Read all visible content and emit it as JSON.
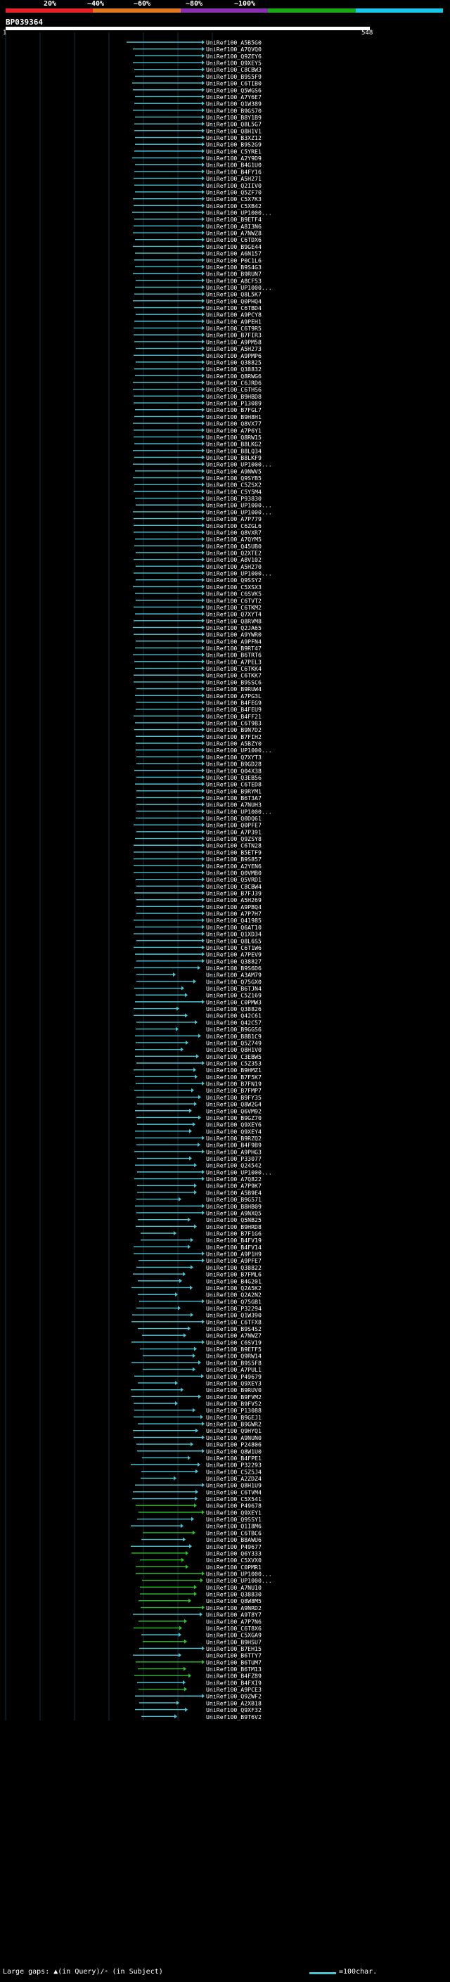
{
  "scale": {
    "labels": [
      "20%",
      "~40%",
      "~60%",
      "~80%",
      "~100%"
    ],
    "colors": [
      "#e8202a",
      "#e07820",
      "#8a30b0",
      "#18a818",
      "#18c8e8"
    ]
  },
  "query": {
    "name": "BP039364",
    "start_label": "1",
    "end_label": "548"
  },
  "colors": {
    "hit": "#48c6d4",
    "hit_alt": "#2ec02e",
    "grid": "#1c2c3c"
  },
  "hits": [
    "UniRef100_A5B5G0",
    "UniRef100_A7QVQ0",
    "UniRef100_Q9ZEY6",
    "UniRef100_Q9XEY5",
    "UniRef100_C8CBW3",
    "UniRef100_B9S5F9",
    "UniRef100_C6TIB0",
    "UniRef100_Q5WGS6",
    "UniRef100_A7Y6E7",
    "UniRef100_Q1W389",
    "UniRef100_B9GS70",
    "UniRef100_B8Y1B9",
    "UniRef100_Q8L5G7",
    "UniRef100_Q8H1V1",
    "UniRef100_B3XZ12",
    "UniRef100_B9S2G9",
    "UniRef100_C5YRE1",
    "UniRef100_A2Y9D9",
    "UniRef100_B4G1U0",
    "UniRef100_B4FY16",
    "UniRef100_A5H271",
    "UniRef100_Q2IIV0",
    "UniRef100_Q5ZF70",
    "UniRef100_C5X7K3",
    "UniRef100_C5XB42",
    "UniRef100_UP1000...",
    "UniRef100_B9ETF4",
    "UniRef100_A8I3N6",
    "UniRef100_A7NWZ8",
    "UniRef100_C6TDX6",
    "UniRef100_B9GE44",
    "UniRef100_A6N157",
    "UniRef100_P0C1L6",
    "UniRef100_B9S4G3",
    "UniRef100_B9RUN7",
    "UniRef100_A8CF53",
    "UniRef100_UP1000...",
    "UniRef100_Q8L5K7",
    "UniRef100_Q0PHQ4",
    "UniRef100_C6TBD4",
    "UniRef100_A9PCY8",
    "UniRef100_A9PEH1",
    "UniRef100_C6T9R5",
    "UniRef100_B7FIR3",
    "UniRef100_A9PM58",
    "UniRef100_A5H273",
    "UniRef100_A9PMP6",
    "UniRef100_Q38825",
    "UniRef100_Q38832",
    "UniRef100_Q8RWG6",
    "UniRef100_C6JRD6",
    "UniRef100_C6THS6",
    "UniRef100_B9HBD8",
    "UniRef100_P13089",
    "UniRef100_B7FGL7",
    "UniRef100_B9H8H1",
    "UniRef100_Q8VX77",
    "UniRef100_A7P6Y1",
    "UniRef100_Q8RW15",
    "UniRef100_B8LKG2",
    "UniRef100_B8LQ34",
    "UniRef100_B8LKF9",
    "UniRef100_UP1000...",
    "UniRef100_A9NWV5",
    "UniRef100_Q9SYB5",
    "UniRef100_C5ZSX2",
    "UniRef100_C5Y5M4",
    "UniRef100_P93830",
    "UniRef100_UP1000...",
    "UniRef100_UP1000...",
    "UniRef100_A7P779",
    "UniRef100_C6ZGL6",
    "UniRef100_Q8VXR7",
    "UniRef100_A7QYM5",
    "UniRef100_Q45UB0",
    "UniRef100_Q2XTE2",
    "UniRef100_A8V102",
    "UniRef100_A5H270",
    "UniRef100_UP1000...",
    "UniRef100_Q9SSY2",
    "UniRef100_C5XSX3",
    "UniRef100_C6SVK5",
    "UniRef100_C6TVT2",
    "UniRef100_C6TKM2",
    "UniRef100_Q7XYT4",
    "UniRef100_Q8RVM8",
    "UniRef100_Q2JA65",
    "UniRef100_A9YWR0",
    "UniRef100_A9PFN4",
    "UniRef100_B9RT47",
    "UniRef100_B6TRT6",
    "UniRef100_A7PEL3",
    "UniRef100_C6TKK4",
    "UniRef100_C6TKK7",
    "UniRef100_B9SSC6",
    "UniRef100_B9RUW4",
    "UniRef100_A7PG3L",
    "UniRef100_B4FEG9",
    "UniRef100_B4FEU9",
    "UniRef100_B4FF21",
    "UniRef100_C6T9B3",
    "UniRef100_B9N7D2",
    "UniRef100_B7FIH2",
    "UniRef100_A5BZY0",
    "UniRef100_UP1000...",
    "UniRef100_Q7XYT3",
    "UniRef100_B9GD28",
    "UniRef100_Q04X38",
    "UniRef100_Q3EB56",
    "UniRef100_C6TED8",
    "UniRef100_B9RYM1",
    "UniRef100_B6T3A7",
    "UniRef100_A7NUH3",
    "UniRef100_UP1000...",
    "UniRef100_Q0DQ61",
    "UniRef100_Q0PFE7",
    "UniRef100_A7P391",
    "UniRef100_Q9ZSY8",
    "UniRef100_C6TN28",
    "UniRef100_B5ETF9",
    "UniRef100_B9S857",
    "UniRef100_A2YEN6",
    "UniRef100_Q0VMB0",
    "UniRef100_Q5VRD1",
    "UniRef100_C8CBW4",
    "UniRef100_B7FJ39",
    "UniRef100_A5H269",
    "UniRef100_A9PBQ4",
    "UniRef100_A7P7H7",
    "UniRef100_Q41985",
    "UniRef100_Q6AT10",
    "UniRef100_Q1XD34",
    "UniRef100_Q8L6S5",
    "UniRef100_C6T1W6",
    "UniRef100_A7PEV9",
    "UniRef100_Q38827",
    "UniRef100_B9S6D6",
    "UniRef100_A3AM79",
    "UniRef100_Q75GX0",
    "UniRef100_B6TJN4",
    "UniRef100_C5Z169",
    "UniRef100_C0PMW3",
    "UniRef100_Q38826",
    "UniRef100_Q42C61",
    "UniRef100_Q42C57",
    "UniRef100_B9GGS6",
    "UniRef100_B8B1C9",
    "UniRef100_Q5Z749",
    "UniRef100_Q8H1V0",
    "UniRef100_C3EBW5",
    "UniRef100_C5Z353",
    "UniRef100_B9HMZ1",
    "UniRef100_B7F5K7",
    "UniRef100_B7FN19",
    "UniRef100_B7FMP7",
    "UniRef100_B9FY35",
    "UniRef100_Q8W2G4",
    "UniRef100_Q6VM92",
    "UniRef100_B9GZ70",
    "UniRef100_Q9XEY6",
    "UniRef100_Q9XEY4",
    "UniRef100_B9RZQ2",
    "UniRef100_B4F9B9",
    "UniRef100_A9PHG3",
    "UniRef100_P33077",
    "UniRef100_Q24542",
    "UniRef100_UP1000...",
    "UniRef100_A7Q822",
    "UniRef100_A7P9K7",
    "UniRef100_A5B9E4",
    "UniRef100_B9G571",
    "UniRef100_B8HB09",
    "UniRef100_A9NXQ5",
    "UniRef100_Q5NB25",
    "UniRef100_B9HRD8",
    "UniRef100_B7F1G6",
    "UniRef100_B4FV19",
    "UniRef100_B4FV14",
    "UniRef100_A9P1H9",
    "UniRef100_A9PFE7",
    "UniRef100_Q38822",
    "UniRef100_B7FML6",
    "UniRef100_B4G201",
    "UniRef100_Q2A5K2",
    "UniRef100_Q2A2N2",
    "UniRef100_Q75GB1",
    "UniRef100_P32294",
    "UniRef100_Q1W390",
    "UniRef100_C6TFX8",
    "UniRef100_B9S4S2",
    "UniRef100_A7NWZ7",
    "UniRef100_C6SV19",
    "UniRef100_B9ETF5",
    "UniRef100_Q9RW14",
    "UniRef100_B9S5F8",
    "UniRef100_A7PUL1",
    "UniRef100_P49679",
    "UniRef100_Q9XEY3",
    "UniRef100_B9RUV0",
    "UniRef100_B9FVM2",
    "UniRef100_B9FV52",
    "UniRef100_P13088",
    "UniRef100_B9GEJ1",
    "UniRef100_B9GWR2",
    "UniRef100_Q9HYQ1",
    "UniRef100_A9NUN0",
    "UniRef100_P24806",
    "UniRef100_Q8W1U0",
    "UniRef100_B4FPE1",
    "UniRef100_P32293",
    "UniRef100_C5Z5J4",
    "UniRef100_A2ZDZ4",
    "UniRef100_Q8H1U9",
    "UniRef100_C6TVM4",
    "UniRef100_C5X541",
    "UniRef100_P49678",
    "UniRef100_Q9XEY1",
    "UniRef100_Q9SSY1",
    "UniRef100_Q1I8M6",
    "UniRef100_C6TBC6",
    "UniRef100_B8AWU6",
    "UniRef100_P49677",
    "UniRef100_Q6Y333",
    "UniRef100_C5XVX0",
    "UniRef100_C0PMR1",
    "UniRef100_UP1000...",
    "UniRef100_UP1000...",
    "UniRef100_A7NU10",
    "UniRef100_Q38830",
    "UniRef100_Q8W8M5",
    "UniRef100_A9NRD2",
    "UniRef100_A9T8Y7",
    "UniRef100_A7P7N6",
    "UniRef100_C6T8X6",
    "UniRef100_C5XGA9",
    "UniRef100_B9HSU7",
    "UniRef100_B7EH15",
    "UniRef100_B6TTY7",
    "UniRef100_B6TUM7",
    "UniRef100_B6TM13",
    "UniRef100_B4FZ89",
    "UniRef100_B4FXI9",
    "UniRef100_A9PCE3",
    "UniRef100_Q9ZWF2",
    "UniRef100_A2XB18",
    "UniRef100_Q9XF32",
    "UniRef100_B9T6V2"
  ],
  "footer": {
    "gaps_text": "Large gaps: ▲(in Query)/⁃ (in Subject)",
    "legend_text": "=100char."
  }
}
